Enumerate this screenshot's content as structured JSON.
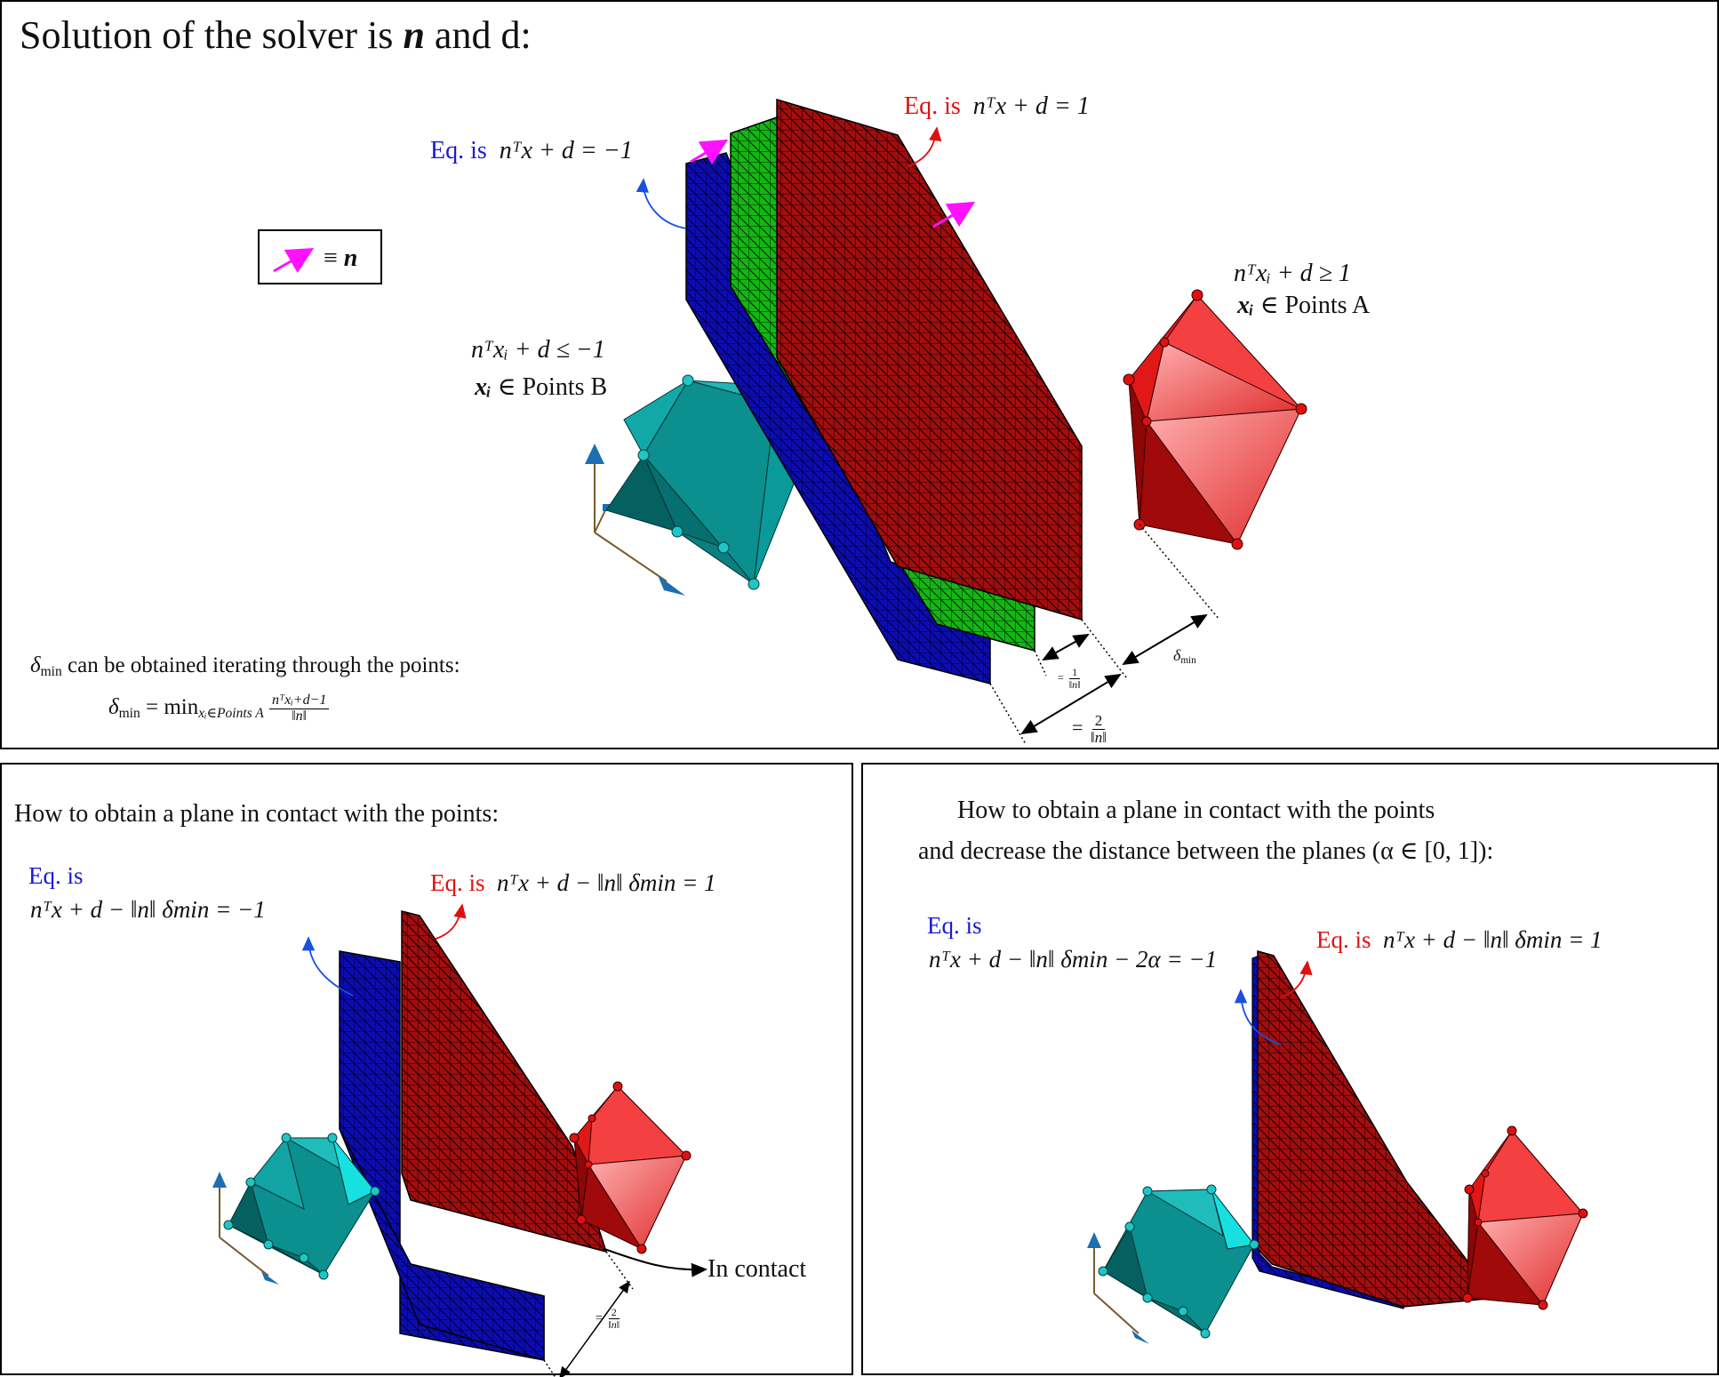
{
  "top": {
    "title_prefix": "Solution of the solver is ",
    "title_n": "n",
    "title_suffix": " and d:",
    "blue_eq_label": "Eq. is",
    "blue_eq": "nᵀx + d = −1",
    "red_eq_label": "Eq. is",
    "red_eq": "nᵀx + d = 1",
    "legend_equiv": "≡",
    "legend_n": "n",
    "cond_b_line1": "nᵀxᵢ + d ≤ −1",
    "cond_b_line2_x": "xᵢ",
    "cond_b_line2_rest": " ∈ Points B",
    "cond_a_line1": "nᵀxᵢ + d ≥ 1",
    "cond_a_line2_x": "xᵢ",
    "cond_a_line2_rest": " ∈ Points A",
    "delta_text": "δ",
    "delta_sub": "min",
    "delta_rest": " can be obtained iterating through the points:",
    "formula_lhs": "δ",
    "formula_lhs_sub": "min",
    "formula_eq": " = min",
    "formula_min_sub": "xᵢ∈Points A",
    "formula_num": "nᵀxᵢ+d−1",
    "formula_den": "‖n‖",
    "dim_small": "= 1/‖n‖",
    "dim_small_num": "1",
    "dim_small_den": "‖n‖",
    "dim_delta": "δ",
    "dim_delta_sub": "min",
    "dim_big_eq": "=",
    "dim_big_num": "2",
    "dim_big_den": "‖n‖"
  },
  "bottom_left": {
    "heading": "How to obtain a plane in contact with the points:",
    "blue_eq_label": "Eq. is",
    "blue_eq": "nᵀx + d − ‖n‖ δmin = −1",
    "red_eq_label": "Eq. is",
    "red_eq": "nᵀx + d − ‖n‖ δmin = 1",
    "contact_label": "In contact",
    "dim_eq": "=",
    "dim_num": "2",
    "dim_den": "‖n‖"
  },
  "bottom_right": {
    "heading_line1": "How to obtain a plane in contact with the points",
    "heading_line2": "and decrease the distance between the planes (α ∈ [0, 1]):",
    "blue_eq_label": "Eq. is",
    "blue_eq": "nᵀx + d − ‖n‖ δmin − 2α = −1",
    "red_eq_label": "Eq. is",
    "red_eq": "nᵀx + d − ‖n‖ δmin = 1"
  },
  "colors": {
    "plane_blue": "#0a0aa8",
    "plane_green": "#12b012",
    "plane_red": "#9e0b0b",
    "polyhedron_cyan": "#0a9a9a",
    "polyhedron_red": "#e02020",
    "normal_arrow": "#ff10ff",
    "label_blue": "#1a1ad6",
    "label_red": "#e01010"
  }
}
